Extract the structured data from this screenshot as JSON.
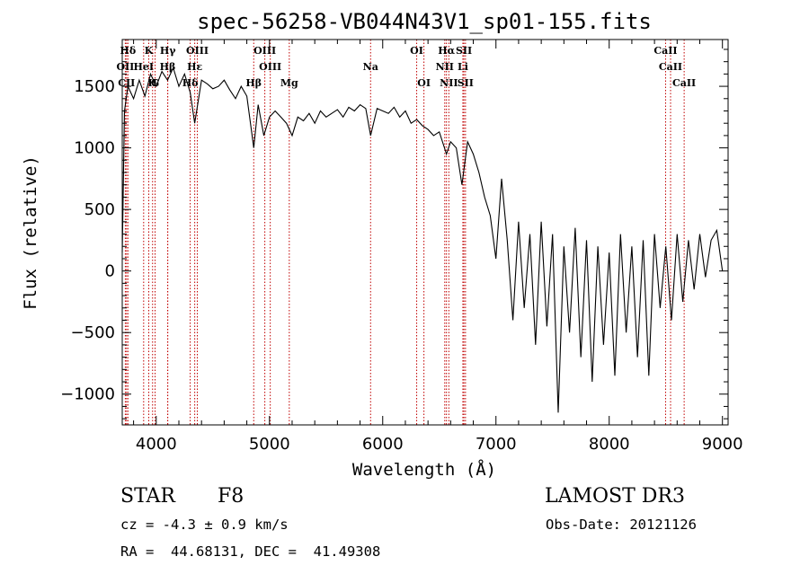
{
  "chart_data": {
    "type": "line",
    "title": "spec-56258-VB044N43V1_sp01-155.fits",
    "xlabel": "Wavelength (Å)",
    "ylabel": "Flux (relative)",
    "xlim": [
      3700,
      9050
    ],
    "ylim": [
      -1250,
      1880
    ],
    "xticks": [
      4000,
      5000,
      6000,
      7000,
      8000,
      9000
    ],
    "yticks": [
      -1000,
      -500,
      0,
      500,
      1000,
      1500
    ],
    "grid": false,
    "series": [
      {
        "name": "flux",
        "x": [
          3700,
          3720,
          3750,
          3800,
          3850,
          3900,
          3950,
          4000,
          4050,
          4100,
          4150,
          4200,
          4250,
          4300,
          4340,
          4400,
          4450,
          4500,
          4550,
          4600,
          4650,
          4700,
          4750,
          4800,
          4861,
          4900,
          4950,
          5000,
          5050,
          5100,
          5150,
          5200,
          5250,
          5300,
          5350,
          5400,
          5450,
          5500,
          5550,
          5600,
          5650,
          5700,
          5750,
          5800,
          5850,
          5893,
          5950,
          6000,
          6050,
          6100,
          6150,
          6200,
          6250,
          6300,
          6350,
          6400,
          6450,
          6500,
          6563,
          6600,
          6650,
          6700,
          6750,
          6800,
          6850,
          6900,
          6950,
          7000,
          7050,
          7100,
          7150,
          7200,
          7250,
          7300,
          7350,
          7400,
          7450,
          7500,
          7550,
          7600,
          7650,
          7700,
          7750,
          7800,
          7850,
          7900,
          7950,
          8000,
          8050,
          8100,
          8150,
          8200,
          8250,
          8300,
          8350,
          8400,
          8450,
          8500,
          8550,
          8600,
          8650,
          8700,
          8750,
          8800,
          8850,
          8900,
          8950,
          9000
        ],
        "y": [
          150,
          1300,
          1500,
          1400,
          1550,
          1420,
          1600,
          1500,
          1620,
          1550,
          1650,
          1500,
          1600,
          1450,
          1200,
          1550,
          1520,
          1480,
          1500,
          1550,
          1470,
          1400,
          1500,
          1420,
          1000,
          1350,
          1100,
          1250,
          1300,
          1250,
          1200,
          1100,
          1250,
          1220,
          1280,
          1200,
          1300,
          1250,
          1280,
          1310,
          1250,
          1330,
          1300,
          1350,
          1320,
          1100,
          1320,
          1300,
          1280,
          1330,
          1250,
          1300,
          1200,
          1230,
          1180,
          1150,
          1100,
          1130,
          950,
          1050,
          1000,
          700,
          1050,
          950,
          800,
          600,
          450,
          100,
          750,
          250,
          -400,
          400,
          -300,
          300,
          -600,
          400,
          -450,
          300,
          -1150,
          200,
          -500,
          350,
          -700,
          250,
          -900,
          200,
          -600,
          150,
          -850,
          300,
          -500,
          200,
          -700,
          250,
          -850,
          300,
          -300,
          200,
          -400,
          300,
          -250,
          250,
          -150,
          300,
          -50,
          250,
          330,
          0
        ]
      }
    ],
    "spectral_lines": [
      {
        "label": "Hδ",
        "x": 3750,
        "row": 0
      },
      {
        "label": "OII",
        "x": 3727,
        "row": 1
      },
      {
        "label": "CII",
        "x": 3738,
        "row": 2
      },
      {
        "label": "K",
        "x": 3934,
        "row": 0
      },
      {
        "label": "HeI",
        "x": 3889,
        "row": 1
      },
      {
        "label": "H",
        "x": 3968,
        "row": 2
      },
      {
        "label": "Hγ",
        "x": 4102,
        "row": 0
      },
      {
        "label": "Hβ",
        "x": 4101,
        "row": 1
      },
      {
        "label": "G",
        "x": 3990,
        "row": 2
      },
      {
        "label": "OIII",
        "x": 4363,
        "row": 0
      },
      {
        "label": "Hε",
        "x": 4340,
        "row": 1
      },
      {
        "label": "Hδ",
        "x": 4300,
        "row": 2
      },
      {
        "label": "OIII",
        "x": 4959,
        "row": 0
      },
      {
        "label": "OIII",
        "x": 5007,
        "row": 1
      },
      {
        "label": "Hβ",
        "x": 4861,
        "row": 2
      },
      {
        "label": "Mg",
        "x": 5175,
        "row": 2
      },
      {
        "label": "Na",
        "x": 5893,
        "row": 1
      },
      {
        "label": "OI",
        "x": 6300,
        "row": 0
      },
      {
        "label": "OI",
        "x": 6364,
        "row": 2
      },
      {
        "label": "Hα",
        "x": 6563,
        "row": 0
      },
      {
        "label": "NII",
        "x": 6548,
        "row": 1
      },
      {
        "label": "NII",
        "x": 6584,
        "row": 2
      },
      {
        "label": "SII",
        "x": 6717,
        "row": 0
      },
      {
        "label": "Li",
        "x": 6708,
        "row": 1
      },
      {
        "label": "SII",
        "x": 6731,
        "row": 2
      },
      {
        "label": "CaII",
        "x": 8498,
        "row": 0
      },
      {
        "label": "CaII",
        "x": 8542,
        "row": 1
      },
      {
        "label": "CaII",
        "x": 8662,
        "row": 2
      }
    ]
  },
  "info": {
    "object_class": "STAR",
    "subclass": "F8",
    "survey": "LAMOST DR3",
    "redshift": "cz = -4.3 ± 0.9 km/s",
    "obs_date": "Obs-Date: 20121126",
    "coords": "RA =  44.68131, DEC =  41.49308"
  },
  "colors": {
    "line_marker": "#c00000",
    "spectrum": "#000000"
  }
}
